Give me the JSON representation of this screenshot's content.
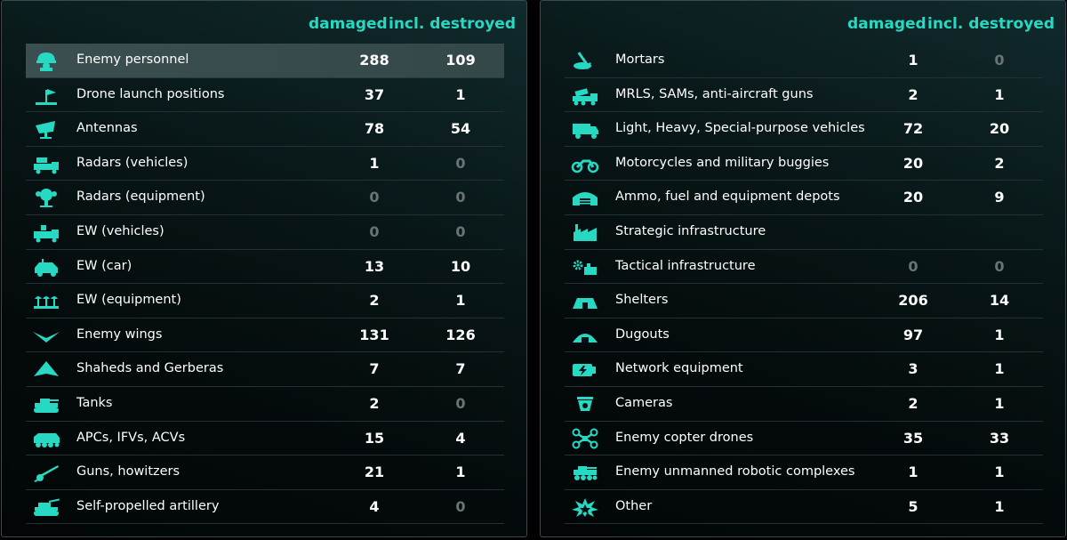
{
  "colors": {
    "accent": "#27d8c2",
    "muted": "#6a7476",
    "text": "#ffffff"
  },
  "left": {
    "header": {
      "damaged": "damaged",
      "destroyed": "incl. destroyed"
    },
    "rows": [
      {
        "icon": "soldier-helmet-icon",
        "label": "Enemy personnel",
        "damaged": "288",
        "destroyed": "109",
        "highlighted": true
      },
      {
        "icon": "drone-launch-position-icon",
        "label": "Drone launch positions",
        "damaged": "37",
        "destroyed": "1"
      },
      {
        "icon": "antenna-dish-icon",
        "label": "Antennas",
        "damaged": "78",
        "destroyed": "54"
      },
      {
        "icon": "radar-vehicle-icon",
        "label": "Radars (vehicles)",
        "damaged": "1",
        "destroyed": "0"
      },
      {
        "icon": "radar-equipment-icon",
        "label": "Radars (equipment)",
        "damaged": "0",
        "destroyed": "0"
      },
      {
        "icon": "ew-vehicle-icon",
        "label": "EW (vehicles)",
        "damaged": "0",
        "destroyed": "0"
      },
      {
        "icon": "ew-car-icon",
        "label": "EW (car)",
        "damaged": "13",
        "destroyed": "10"
      },
      {
        "icon": "ew-equipment-icon",
        "label": "EW (equipment)",
        "damaged": "2",
        "destroyed": "1"
      },
      {
        "icon": "enemy-wing-icon",
        "label": "Enemy wings",
        "damaged": "131",
        "destroyed": "126"
      },
      {
        "icon": "shahed-drone-icon",
        "label": "Shaheds and Gerberas",
        "damaged": "7",
        "destroyed": "7"
      },
      {
        "icon": "tank-icon",
        "label": "Tanks",
        "damaged": "2",
        "destroyed": "0"
      },
      {
        "icon": "apc-icon",
        "label": "APCs, IFVs, ACVs",
        "damaged": "15",
        "destroyed": "4"
      },
      {
        "icon": "howitzer-icon",
        "label": "Guns, howitzers",
        "damaged": "21",
        "destroyed": "1"
      },
      {
        "icon": "self-propelled-artillery-icon",
        "label": "Self-propelled artillery",
        "damaged": "4",
        "destroyed": "0"
      }
    ]
  },
  "right": {
    "header": {
      "damaged": "damaged",
      "destroyed": "incl. destroyed"
    },
    "rows": [
      {
        "icon": "mortar-icon",
        "label": "Mortars",
        "damaged": "1",
        "destroyed": "0"
      },
      {
        "icon": "mrls-icon",
        "label": "MRLS, SAMs, anti-aircraft guns",
        "damaged": "2",
        "destroyed": "1"
      },
      {
        "icon": "truck-icon",
        "label": "Light, Heavy, Special-purpose vehicles",
        "damaged": "72",
        "destroyed": "20"
      },
      {
        "icon": "motorcycle-icon",
        "label": "Motorcycles and military buggies",
        "damaged": "20",
        "destroyed": "2"
      },
      {
        "icon": "depot-hangar-icon",
        "label": "Ammo, fuel and equipment depots",
        "damaged": "20",
        "destroyed": "9"
      },
      {
        "icon": "factory-icon",
        "label": "Strategic infrastructure",
        "damaged": "",
        "destroyed": ""
      },
      {
        "icon": "tactical-infrastructure-icon",
        "label": "Tactical infrastructure",
        "damaged": "0",
        "destroyed": "0"
      },
      {
        "icon": "shelter-icon",
        "label": "Shelters",
        "damaged": "206",
        "destroyed": "14"
      },
      {
        "icon": "dugout-icon",
        "label": "Dugouts",
        "damaged": "97",
        "destroyed": "1"
      },
      {
        "icon": "network-equipment-icon",
        "label": "Network equipment",
        "damaged": "3",
        "destroyed": "1"
      },
      {
        "icon": "camera-icon",
        "label": "Cameras",
        "damaged": "2",
        "destroyed": "1"
      },
      {
        "icon": "copter-drone-icon",
        "label": "Enemy copter drones",
        "damaged": "35",
        "destroyed": "33"
      },
      {
        "icon": "robotic-complex-icon",
        "label": "Enemy unmanned robotic complexes",
        "damaged": "1",
        "destroyed": "1"
      },
      {
        "icon": "explosion-icon",
        "label": "Other",
        "damaged": "5",
        "destroyed": "1"
      }
    ]
  }
}
